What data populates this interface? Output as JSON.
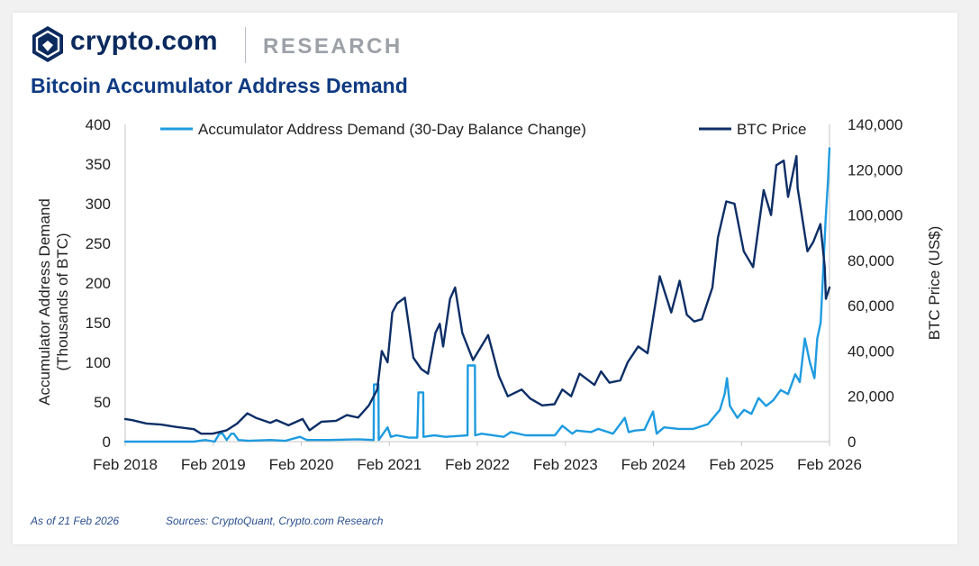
{
  "brand": {
    "name": "crypto.com",
    "section": "RESEARCH",
    "logo_icon": "crypto-lion-shield-logo"
  },
  "title": "Bitcoin Accumulator Address Demand",
  "footer": {
    "as_of": "As of 21 Feb 2026",
    "sources": "Sources: CryptoQuant, Crypto.com Research"
  },
  "colors": {
    "accumulator": "#1e9be0",
    "btc": "#0d2e66",
    "title": "#0e3a82"
  },
  "chart_data": {
    "type": "line",
    "ylabel_left": "Accumulator Address Demand (Thousands of BTC)",
    "ylabel_left_lines": [
      "Accumulator Address Demand",
      "(Thousands of BTC)"
    ],
    "ylabel_right": "BTC Price (US$)",
    "ylim_left": [
      0,
      400
    ],
    "ylim_right": [
      0,
      140000
    ],
    "yticks_left": [
      "0",
      "50",
      "100",
      "150",
      "200",
      "250",
      "300",
      "350",
      "400"
    ],
    "yticks_right": [
      "0",
      "20,000",
      "40,000",
      "60,000",
      "80,000",
      "100,000",
      "120,000",
      "140,000"
    ],
    "xlim": [
      "2018-02-01",
      "2026-02-21"
    ],
    "xticks": [
      "Feb 2018",
      "Feb 2019",
      "Feb 2020",
      "Feb 2021",
      "Feb 2022",
      "Feb 2023",
      "Feb 2024",
      "Feb 2025",
      "Feb 2026"
    ],
    "grid": false,
    "legend": "top",
    "series": [
      {
        "name": "Accumulator Address Demand (30-Day Balance Change)",
        "axis": "left",
        "color": "#1e9be0",
        "x": [
          "2018-02-01",
          "2018-09-01",
          "2018-11-15",
          "2019-01-01",
          "2019-02-10",
          "2019-03-01",
          "2019-03-15",
          "2019-04-01",
          "2019-04-20",
          "2019-05-01",
          "2019-05-20",
          "2019-07-01",
          "2019-10-01",
          "2019-12-01",
          "2020-02-01",
          "2020-03-01",
          "2020-06-01",
          "2020-10-01",
          "2020-12-05",
          "2020-12-06",
          "2020-12-25",
          "2020-12-26",
          "2021-02-01",
          "2021-02-15",
          "2021-03-10",
          "2021-05-01",
          "2021-06-05",
          "2021-06-10",
          "2021-06-30",
          "2021-07-01",
          "2021-08-15",
          "2021-10-01",
          "2022-01-01",
          "2022-01-02",
          "2022-02-01",
          "2022-02-02",
          "2022-03-01",
          "2022-06-01",
          "2022-07-01",
          "2022-09-01",
          "2023-01-01",
          "2023-02-01",
          "2023-03-15",
          "2023-04-01",
          "2023-06-01",
          "2023-07-01",
          "2023-09-01",
          "2023-10-20",
          "2023-11-05",
          "2023-12-01",
          "2024-01-10",
          "2024-02-15",
          "2024-03-01",
          "2024-04-01",
          "2024-06-01",
          "2024-08-01",
          "2024-10-01",
          "2024-11-20",
          "2024-12-10",
          "2024-12-20",
          "2025-01-01",
          "2025-02-01",
          "2025-03-01",
          "2025-04-01",
          "2025-05-01",
          "2025-06-01",
          "2025-07-01",
          "2025-08-01",
          "2025-09-01",
          "2025-10-01",
          "2025-10-20",
          "2025-11-10",
          "2025-12-01",
          "2025-12-20",
          "2026-01-01",
          "2026-01-15",
          "2026-01-25",
          "2026-02-05",
          "2026-02-15",
          "2026-02-21"
        ],
        "y": [
          0,
          0,
          0,
          2,
          0,
          10,
          10,
          2,
          10,
          10,
          2,
          1,
          2,
          1,
          6,
          2,
          2,
          3,
          2,
          72,
          72,
          2,
          18,
          6,
          8,
          5,
          5,
          62,
          62,
          6,
          8,
          6,
          8,
          96,
          96,
          8,
          10,
          6,
          12,
          8,
          8,
          20,
          10,
          14,
          12,
          16,
          10,
          30,
          12,
          14,
          15,
          38,
          10,
          18,
          16,
          16,
          22,
          40,
          60,
          80,
          45,
          30,
          40,
          35,
          55,
          45,
          52,
          65,
          60,
          85,
          75,
          130,
          100,
          80,
          130,
          150,
          210,
          280,
          330,
          370
        ]
      },
      {
        "name": "BTC Price",
        "axis": "right",
        "color": "#0d2e66",
        "x": [
          "2018-02-01",
          "2018-03-01",
          "2018-05-01",
          "2018-07-01",
          "2018-09-01",
          "2018-11-15",
          "2018-12-15",
          "2019-02-01",
          "2019-04-01",
          "2019-05-15",
          "2019-06-26",
          "2019-08-01",
          "2019-09-30",
          "2019-10-26",
          "2019-12-15",
          "2020-02-12",
          "2020-03-12",
          "2020-05-01",
          "2020-07-01",
          "2020-08-15",
          "2020-10-01",
          "2020-11-15",
          "2020-12-20",
          "2021-01-08",
          "2021-02-01",
          "2021-02-21",
          "2021-03-13",
          "2021-04-14",
          "2021-05-20",
          "2021-06-22",
          "2021-07-20",
          "2021-08-20",
          "2021-09-07",
          "2021-09-21",
          "2021-10-20",
          "2021-11-10",
          "2021-12-10",
          "2022-01-24",
          "2022-03-28",
          "2022-05-12",
          "2022-06-18",
          "2022-08-15",
          "2022-09-20",
          "2022-11-09",
          "2022-12-30",
          "2023-02-01",
          "2023-03-10",
          "2023-04-14",
          "2023-06-15",
          "2023-07-13",
          "2023-08-17",
          "2023-10-01",
          "2023-11-01",
          "2023-12-15",
          "2024-01-23",
          "2024-03-14",
          "2024-05-01",
          "2024-06-05",
          "2024-07-05",
          "2024-08-05",
          "2024-09-06",
          "2024-10-20",
          "2024-11-12",
          "2024-12-17",
          "2025-01-20",
          "2025-02-28",
          "2025-04-08",
          "2025-05-22",
          "2025-06-22",
          "2025-07-14",
          "2025-08-14",
          "2025-09-01",
          "2025-10-06",
          "2025-10-11",
          "2025-11-21",
          "2025-12-15",
          "2026-01-14",
          "2026-02-01",
          "2026-02-06",
          "2026-02-21"
        ],
        "y": [
          10000,
          9500,
          8000,
          7500,
          6500,
          5500,
          3500,
          3500,
          5000,
          8000,
          12500,
          10500,
          8300,
          9500,
          7200,
          10000,
          5000,
          8800,
          9200,
          11700,
          10600,
          16000,
          23000,
          40000,
          35000,
          57000,
          61000,
          63500,
          37000,
          32000,
          30000,
          48000,
          52000,
          42000,
          63000,
          68000,
          48000,
          36000,
          47000,
          29000,
          20000,
          23000,
          19000,
          16000,
          16500,
          23000,
          20000,
          30000,
          25000,
          31000,
          26000,
          27000,
          35000,
          42000,
          39000,
          73000,
          57000,
          71000,
          56000,
          53000,
          54000,
          68000,
          90000,
          106000,
          105000,
          84000,
          77000,
          111000,
          100000,
          122000,
          124000,
          108000,
          126000,
          112000,
          84000,
          88000,
          96000,
          77000,
          63000,
          68000
        ]
      }
    ]
  }
}
